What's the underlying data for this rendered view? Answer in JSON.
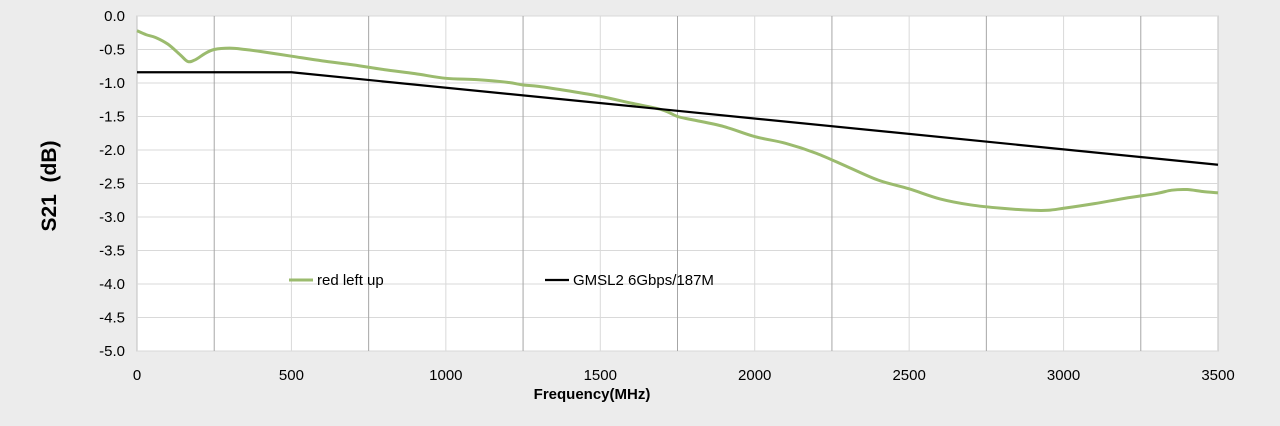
{
  "chart_data": {
    "type": "line",
    "title": "",
    "xlabel": "Frequency(MHz)",
    "ylabel": "S21  (dB)",
    "xlim": [
      0,
      3500
    ],
    "ylim": [
      -5.0,
      0.0
    ],
    "x_ticks": [
      0,
      500,
      1000,
      1500,
      2000,
      2500,
      3000,
      3500
    ],
    "x_tick_labels": [
      "0",
      "500",
      "1000",
      "1500",
      "2000",
      "2500",
      "3000",
      "3500"
    ],
    "y_ticks": [
      0.0,
      -0.5,
      -1.0,
      -1.5,
      -2.0,
      -2.5,
      -3.0,
      -3.5,
      -4.0,
      -4.5,
      -5.0
    ],
    "y_tick_labels": [
      "0.0",
      "-0.5",
      "-1.0",
      "-1.5",
      "-2.0",
      "-2.5",
      "-3.0",
      "-3.5",
      "-4.0",
      "-4.5",
      "-5.0"
    ],
    "major_vertical_grid": [
      250,
      750,
      1250,
      1750,
      2250,
      2750,
      3250
    ],
    "minor_vertical_grid": [
      500,
      1000,
      1500,
      2000,
      2500,
      3000
    ],
    "horizontal_grid": true,
    "legend_position": "inside-lower-left",
    "background_color": "#ececec",
    "plot_background_color": "#ffffff",
    "grid_color": "#d9d9d9",
    "major_grid_color": "#a6a6a6",
    "series": [
      {
        "name": "red left up",
        "color": "#9bbb6e",
        "x": [
          0,
          30,
          60,
          100,
          140,
          165,
          190,
          220,
          250,
          300,
          350,
          400,
          500,
          600,
          700,
          800,
          900,
          1000,
          1100,
          1200,
          1250,
          1300,
          1400,
          1500,
          1600,
          1700,
          1750,
          1800,
          1900,
          2000,
          2100,
          2200,
          2300,
          2400,
          2500,
          2600,
          2700,
          2800,
          2900,
          2950,
          3000,
          3100,
          3200,
          3300,
          3350,
          3400,
          3450,
          3500
        ],
        "y": [
          -0.22,
          -0.28,
          -0.32,
          -0.42,
          -0.58,
          -0.68,
          -0.65,
          -0.56,
          -0.5,
          -0.48,
          -0.5,
          -0.53,
          -0.6,
          -0.67,
          -0.73,
          -0.8,
          -0.86,
          -0.93,
          -0.95,
          -0.99,
          -1.03,
          -1.05,
          -1.12,
          -1.2,
          -1.3,
          -1.4,
          -1.5,
          -1.55,
          -1.65,
          -1.8,
          -1.9,
          -2.05,
          -2.25,
          -2.45,
          -2.58,
          -2.73,
          -2.82,
          -2.87,
          -2.9,
          -2.9,
          -2.87,
          -2.8,
          -2.72,
          -2.65,
          -2.6,
          -2.59,
          -2.62,
          -2.64
        ]
      },
      {
        "name": "GMSL2 6Gbps/187M",
        "color": "#000000",
        "x": [
          0,
          500,
          3500
        ],
        "y": [
          -0.84,
          -0.84,
          -2.22
        ]
      }
    ]
  }
}
